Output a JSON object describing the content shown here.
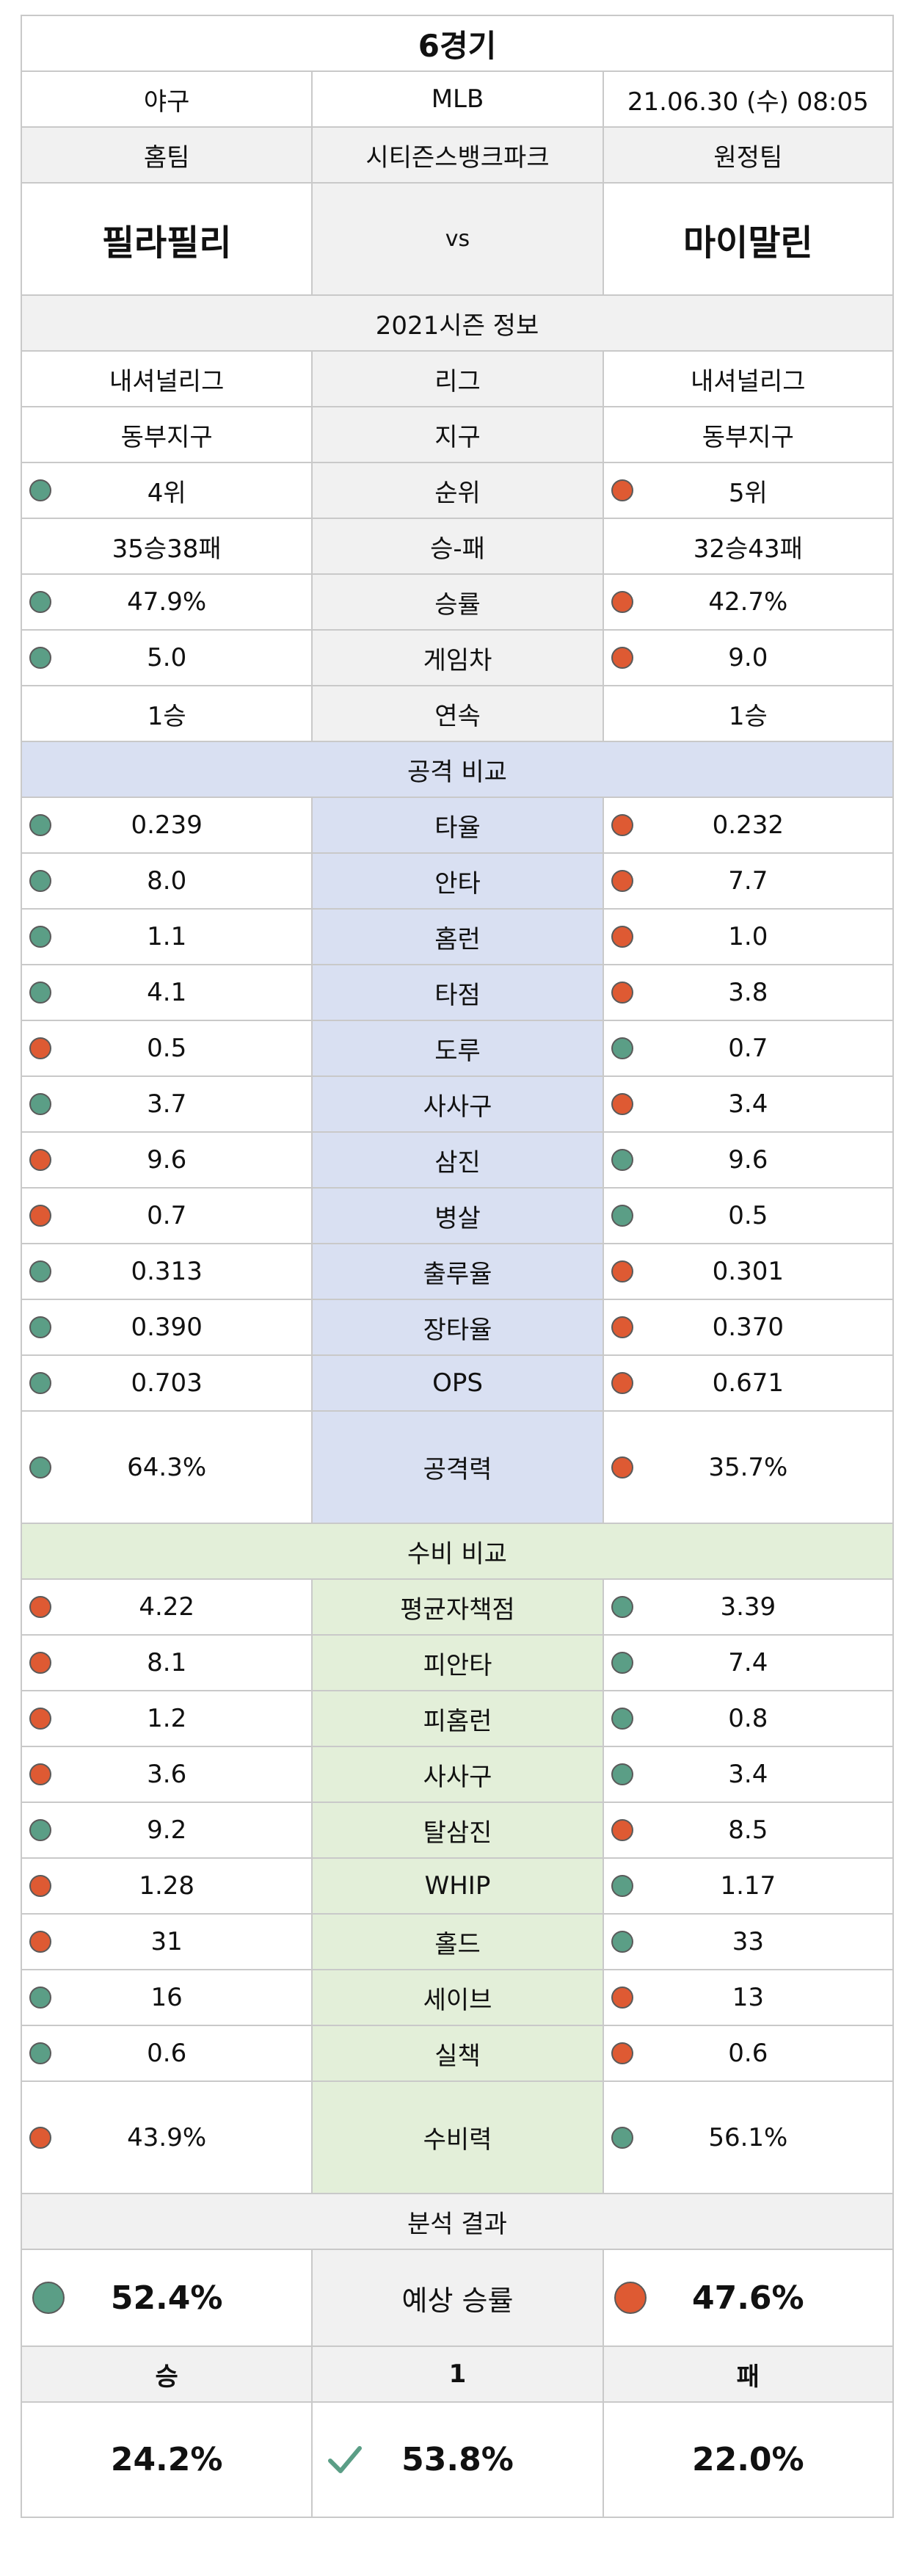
{
  "header": {
    "game_title": "6경기",
    "sport": "야구",
    "league": "MLB",
    "datetime": "21.06.30 (수) 08:05",
    "home_label": "홈팀",
    "venue": "시티즌스뱅크파크",
    "away_label": "원정팀",
    "home_team": "필라필리",
    "vs": "vs",
    "away_team": "마이말린"
  },
  "season": {
    "title": "2021시즌 정보",
    "rows": [
      {
        "label": "리그",
        "home": "내셔널리그",
        "away": "내셔널리그",
        "home_dot": "",
        "away_dot": ""
      },
      {
        "label": "지구",
        "home": "동부지구",
        "away": "동부지구",
        "home_dot": "",
        "away_dot": ""
      },
      {
        "label": "순위",
        "home": "4위",
        "away": "5위",
        "home_dot": "green",
        "away_dot": "red"
      },
      {
        "label": "승-패",
        "home": "35승38패",
        "away": "32승43패",
        "home_dot": "",
        "away_dot": ""
      },
      {
        "label": "승률",
        "home": "47.9%",
        "away": "42.7%",
        "home_dot": "green",
        "away_dot": "red"
      },
      {
        "label": "게임차",
        "home": "5.0",
        "away": "9.0",
        "home_dot": "green",
        "away_dot": "red"
      },
      {
        "label": "연속",
        "home": "1승",
        "away": "1승",
        "home_dot": "",
        "away_dot": ""
      }
    ]
  },
  "attack": {
    "title": "공격 비교",
    "rows": [
      {
        "label": "타율",
        "home": "0.239",
        "away": "0.232",
        "home_dot": "green",
        "away_dot": "red"
      },
      {
        "label": "안타",
        "home": "8.0",
        "away": "7.7",
        "home_dot": "green",
        "away_dot": "red"
      },
      {
        "label": "홈런",
        "home": "1.1",
        "away": "1.0",
        "home_dot": "green",
        "away_dot": "red"
      },
      {
        "label": "타점",
        "home": "4.1",
        "away": "3.8",
        "home_dot": "green",
        "away_dot": "red"
      },
      {
        "label": "도루",
        "home": "0.5",
        "away": "0.7",
        "home_dot": "red",
        "away_dot": "green"
      },
      {
        "label": "사사구",
        "home": "3.7",
        "away": "3.4",
        "home_dot": "green",
        "away_dot": "red"
      },
      {
        "label": "삼진",
        "home": "9.6",
        "away": "9.6",
        "home_dot": "red",
        "away_dot": "green"
      },
      {
        "label": "병살",
        "home": "0.7",
        "away": "0.5",
        "home_dot": "red",
        "away_dot": "green"
      },
      {
        "label": "출루율",
        "home": "0.313",
        "away": "0.301",
        "home_dot": "green",
        "away_dot": "red"
      },
      {
        "label": "장타율",
        "home": "0.390",
        "away": "0.370",
        "home_dot": "green",
        "away_dot": "red"
      },
      {
        "label": "OPS",
        "home": "0.703",
        "away": "0.671",
        "home_dot": "green",
        "away_dot": "red"
      }
    ],
    "power": {
      "label": "공격력",
      "home": "64.3%",
      "away": "35.7%",
      "home_dot": "green",
      "away_dot": "red"
    }
  },
  "defense": {
    "title": "수비 비교",
    "rows": [
      {
        "label": "평균자책점",
        "home": "4.22",
        "away": "3.39",
        "home_dot": "red",
        "away_dot": "green"
      },
      {
        "label": "피안타",
        "home": "8.1",
        "away": "7.4",
        "home_dot": "red",
        "away_dot": "green"
      },
      {
        "label": "피홈런",
        "home": "1.2",
        "away": "0.8",
        "home_dot": "red",
        "away_dot": "green"
      },
      {
        "label": "사사구",
        "home": "3.6",
        "away": "3.4",
        "home_dot": "red",
        "away_dot": "green"
      },
      {
        "label": "탈삼진",
        "home": "9.2",
        "away": "8.5",
        "home_dot": "green",
        "away_dot": "red"
      },
      {
        "label": "WHIP",
        "home": "1.28",
        "away": "1.17",
        "home_dot": "red",
        "away_dot": "green"
      },
      {
        "label": "홀드",
        "home": "31",
        "away": "33",
        "home_dot": "red",
        "away_dot": "green"
      },
      {
        "label": "세이브",
        "home": "16",
        "away": "13",
        "home_dot": "green",
        "away_dot": "red"
      },
      {
        "label": "실책",
        "home": "0.6",
        "away": "0.6",
        "home_dot": "green",
        "away_dot": "red"
      }
    ],
    "power": {
      "label": "수비력",
      "home": "43.9%",
      "away": "56.1%",
      "home_dot": "red",
      "away_dot": "green"
    }
  },
  "analysis": {
    "title": "분석 결과",
    "label": "예상 승률",
    "home": "52.4%",
    "away": "47.6%",
    "home_dot": "green",
    "away_dot": "red",
    "outcomes": {
      "win_label": "승",
      "draw_label": "1",
      "loss_label": "패",
      "win": "24.2%",
      "draw": "53.8%",
      "loss": "22.0%",
      "pick": "draw"
    }
  },
  "colors": {
    "green": "#5b9e86",
    "red": "#de5a33",
    "check": "#5b9e86"
  }
}
